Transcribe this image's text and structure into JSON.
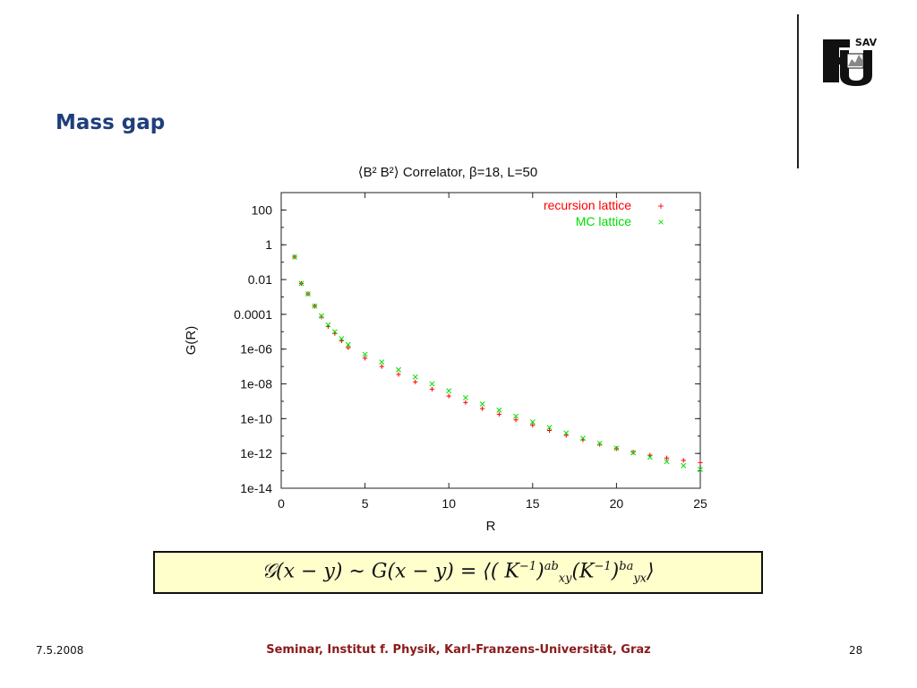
{
  "slide": {
    "title": "Mass gap",
    "footer_date": "7.5.2008",
    "footer_center": "Seminar, Institut f. Physik, Karl-Franzens-Universität, Graz",
    "footer_page": "28",
    "logo_text": "SAV"
  },
  "formula": {
    "lhs": "𝒢(x − y) ∼ G(x − y) = ⟨( K",
    "text_full": "𝒢(x − y) ∼ G(x − y) = ⟨( K^{-1})^{ab}_{xy}(K^{-1})^{ba}_{yx}⟩"
  },
  "chart_data": {
    "type": "scatter",
    "title": "⟨B² B²⟩ Correlator, β=18, L=50",
    "xlabel": "R",
    "ylabel": "G(R)",
    "xlim": [
      0,
      25
    ],
    "ylim": [
      1e-14,
      1000
    ],
    "yscale": "log",
    "x_ticks": [
      "0",
      "5",
      "10",
      "15",
      "20",
      "25"
    ],
    "y_ticks": [
      "100",
      "1",
      "0.01",
      "0.0001",
      "1e-06",
      "1e-08",
      "1e-10",
      "1e-12",
      "1e-14"
    ],
    "legend_position": "top-right",
    "grid": false,
    "series": [
      {
        "name": "recursion lattice",
        "color": "#ff0000",
        "marker": "+",
        "x": [
          0.8,
          1.2,
          1.6,
          2.0,
          2.4,
          2.8,
          3.2,
          3.6,
          4.0,
          5,
          6,
          7,
          8,
          9,
          10,
          11,
          12,
          13,
          14,
          15,
          16,
          17,
          18,
          19,
          20,
          21,
          22,
          23,
          24,
          25
        ],
        "y": [
          0.2,
          0.006,
          0.0015,
          0.0003,
          7e-05,
          2e-05,
          8e-06,
          3e-06,
          1.2e-06,
          3e-07,
          1e-07,
          3.5e-08,
          1.3e-08,
          5e-09,
          2e-09,
          8.5e-10,
          3.8e-10,
          1.8e-10,
          8.5e-11,
          4.2e-11,
          2.1e-11,
          1.1e-11,
          6e-12,
          3.3e-12,
          1.9e-12,
          1.2e-12,
          8e-13,
          5.5e-13,
          4e-13,
          3e-13
        ]
      },
      {
        "name": "MC lattice",
        "color": "#00dd00",
        "marker": "×",
        "x": [
          0.8,
          1.2,
          1.6,
          2.0,
          2.4,
          2.8,
          3.2,
          3.6,
          4.0,
          5,
          6,
          7,
          8,
          9,
          10,
          11,
          12,
          13,
          14,
          15,
          16,
          17,
          18,
          19,
          20,
          21,
          22,
          23,
          24,
          25
        ],
        "y": [
          0.2,
          0.006,
          0.0015,
          0.0003,
          8e-05,
          2.5e-05,
          1e-05,
          4e-06,
          1.8e-06,
          5e-07,
          1.8e-07,
          6.5e-08,
          2.5e-08,
          1e-08,
          4e-09,
          1.6e-09,
          7e-10,
          3.1e-10,
          1.4e-10,
          6.5e-11,
          3.1e-11,
          1.5e-11,
          7.5e-12,
          3.8e-12,
          2e-12,
          1.1e-12,
          6e-13,
          3.4e-13,
          2e-13,
          1.2e-13
        ]
      }
    ]
  },
  "colors": {
    "title": "#1f3f7a",
    "footer": "#8b1a1a",
    "formula_bg": "#ffffcc"
  }
}
